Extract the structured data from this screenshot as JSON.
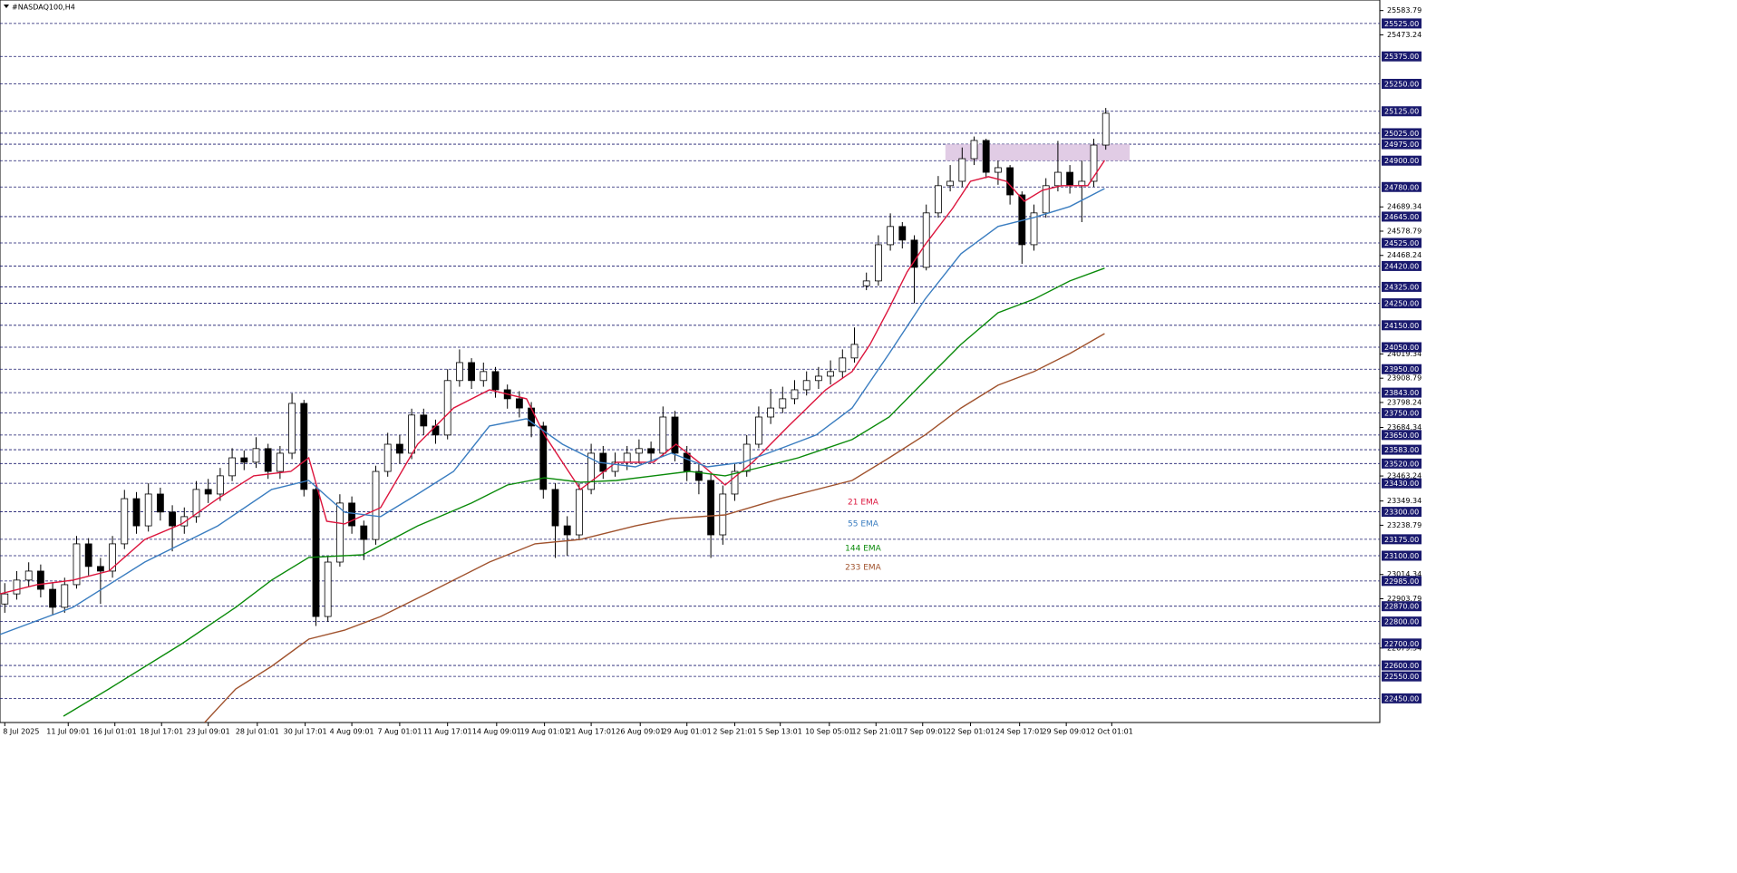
{
  "chart_data": {
    "type": "candlestick",
    "title": "#NASDAQ100,H4",
    "ylim": [
      22340,
      25632
    ],
    "xlim": [
      -0.4,
      114.9
    ],
    "yticks": [
      25583.79,
      25473.24,
      24689.34,
      24578.79,
      24468.24,
      24019.34,
      23908.79,
      23798.24,
      23684.34,
      23463.24,
      23349.34,
      23238.79,
      23014.34,
      22903.79,
      22679.34
    ],
    "levels": [
      {
        "value": 25525,
        "label": "25525.00"
      },
      {
        "value": 25375,
        "label": "25375.00"
      },
      {
        "value": 25250,
        "label": "25250.00"
      },
      {
        "value": 25125,
        "label": "25125.00"
      },
      {
        "value": 25025,
        "label": "25025.00"
      },
      {
        "value": 24975,
        "label": "24975.00"
      },
      {
        "value": 24900,
        "label": "24900.00"
      },
      {
        "value": 24780,
        "label": "24780.00"
      },
      {
        "value": 24645,
        "label": "24645.00"
      },
      {
        "value": 24525,
        "label": "24525.00"
      },
      {
        "value": 24420,
        "label": "24420.00"
      },
      {
        "value": 24325,
        "label": "24325.00"
      },
      {
        "value": 24250,
        "label": "24250.00"
      },
      {
        "value": 24150,
        "label": "24150.00"
      },
      {
        "value": 24050,
        "label": "24050.00"
      },
      {
        "value": 23950,
        "label": "23950.00"
      },
      {
        "value": 23843,
        "label": "23843.00"
      },
      {
        "value": 23750,
        "label": "23750.00"
      },
      {
        "value": 23650,
        "label": "23650.00"
      },
      {
        "value": 23583,
        "label": "23583.00"
      },
      {
        "value": 23520,
        "label": "23520.00"
      },
      {
        "value": 23430,
        "label": "23430.00"
      },
      {
        "value": 23300,
        "label": "23300.00"
      },
      {
        "value": 23175,
        "label": "23175.00"
      },
      {
        "value": 23100,
        "label": "23100.00"
      },
      {
        "value": 22985,
        "label": "22985.00"
      },
      {
        "value": 22870,
        "label": "22870.00"
      },
      {
        "value": 22800,
        "label": "22800.00"
      },
      {
        "value": 22700,
        "label": "22700.00"
      },
      {
        "value": 22600,
        "label": "22600.00"
      },
      {
        "value": 22550,
        "label": "22550.00"
      },
      {
        "value": 22450,
        "label": "22450.00"
      }
    ],
    "level_color": "#1a1a6e",
    "xticks": [
      {
        "value": 0,
        "label": "8 Jul 2025"
      },
      {
        "value": 5.3,
        "label": "11 Jul 09:01"
      },
      {
        "value": 9.2,
        "label": "16 Jul 01:01"
      },
      {
        "value": 13.1,
        "label": "18 Jul 17:01"
      },
      {
        "value": 17,
        "label": "23 Jul 09:01"
      },
      {
        "value": 21.1,
        "label": "28 Jul 01:01"
      },
      {
        "value": 25.1,
        "label": "30 Jul 17:01"
      },
      {
        "value": 29,
        "label": "4 Aug 09:01"
      },
      {
        "value": 33,
        "label": "7 Aug 01:01"
      },
      {
        "value": 37,
        "label": "11 Aug 17:01"
      },
      {
        "value": 41.1,
        "label": "14 Aug 09:01"
      },
      {
        "value": 45.1,
        "label": "19 Aug 01:01"
      },
      {
        "value": 49,
        "label": "21 Aug 17:01"
      },
      {
        "value": 53.1,
        "label": "26 Aug 09:01"
      },
      {
        "value": 57,
        "label": "29 Aug 01:01"
      },
      {
        "value": 61,
        "label": "2 Sep 21:01"
      },
      {
        "value": 64.8,
        "label": "5 Sep 13:01"
      },
      {
        "value": 68.9,
        "label": "10 Sep 05:01"
      },
      {
        "value": 72.8,
        "label": "12 Sep 21:01"
      },
      {
        "value": 76.7,
        "label": "17 Sep 09:01"
      },
      {
        "value": 80.7,
        "label": "22 Sep 01:01"
      },
      {
        "value": 84.8,
        "label": "24 Sep 17:01"
      },
      {
        "value": 88.7,
        "label": "29 Sep 09:01"
      },
      {
        "value": 92.5,
        "label": "2 Oct 01:01"
      }
    ],
    "up_color": "#ffffff",
    "down_color": "#000000",
    "candles": {
      "open": [
        22880,
        22926,
        22989,
        23030,
        22947,
        22865,
        22968,
        23154,
        23051,
        23030,
        23154,
        23360,
        23236,
        23381,
        23299,
        23236,
        23278,
        23402,
        23381,
        23464,
        23546,
        23526,
        23588,
        23484,
        23567,
        23794,
        23402,
        22823,
        23071,
        23340,
        23236,
        23174,
        23484,
        23608,
        23567,
        23741,
        23691,
        23650,
        23898,
        23980,
        23898,
        23939,
        23856,
        23815,
        23773,
        23691,
        23402,
        23236,
        23195,
        23402,
        23567,
        23484,
        23526,
        23567,
        23588,
        23567,
        23732,
        23567,
        23484,
        23443,
        23195,
        23381,
        23484,
        23608,
        23732,
        23773,
        23815,
        23856,
        23898,
        23918,
        23939,
        24001,
        24330,
        24352,
        24517,
        24600,
        24538,
        24414,
        24662,
        24786,
        24806,
        24909,
        24992,
        24847,
        24868,
        24744,
        24517,
        24662,
        24786,
        24847,
        24786,
        24806,
        24971
      ],
      "high": [
        22975,
        23030,
        23070,
        23060,
        22980,
        23000,
        23190,
        23180,
        23090,
        23190,
        23400,
        23390,
        23430,
        23410,
        23330,
        23320,
        23440,
        23450,
        23500,
        23590,
        23580,
        23640,
        23610,
        23600,
        23840,
        23810,
        23420,
        23100,
        23380,
        23370,
        23260,
        23510,
        23660,
        23650,
        23770,
        23770,
        23720,
        23950,
        24040,
        24000,
        23980,
        23960,
        23880,
        23850,
        23800,
        23710,
        23430,
        23280,
        23430,
        23610,
        23600,
        23570,
        23600,
        23630,
        23620,
        23780,
        23760,
        23600,
        23520,
        23470,
        23420,
        23520,
        23650,
        23780,
        23860,
        23870,
        23900,
        23940,
        23960,
        23990,
        24040,
        24140,
        24390,
        24560,
        24660,
        24620,
        24560,
        24700,
        24830,
        24880,
        24960,
        25010,
        25000,
        24900,
        24880,
        24760,
        24700,
        24820,
        24990,
        24880,
        24900,
        25000,
        25140
      ],
      "low": [
        22840,
        22900,
        22960,
        22910,
        22830,
        22840,
        22950,
        23010,
        22880,
        23000,
        23130,
        23200,
        23210,
        23260,
        23120,
        23200,
        23250,
        23340,
        23350,
        23440,
        23490,
        23500,
        23450,
        23450,
        23540,
        23370,
        22780,
        22800,
        23050,
        23200,
        23080,
        23150,
        23460,
        23520,
        23540,
        23650,
        23610,
        23630,
        23870,
        23860,
        23870,
        23820,
        23770,
        23730,
        23640,
        23360,
        23090,
        23100,
        23170,
        23380,
        23450,
        23460,
        23490,
        23520,
        23530,
        23550,
        23530,
        23440,
        23380,
        23090,
        23150,
        23350,
        23460,
        23590,
        23700,
        23750,
        23790,
        23830,
        23860,
        23880,
        23910,
        23980,
        24310,
        24330,
        24490,
        24500,
        24250,
        24400,
        24640,
        24760,
        24780,
        24880,
        24820,
        24790,
        24700,
        24430,
        24490,
        24640,
        24760,
        24750,
        24620,
        24780,
        24950
      ],
      "close": [
        22926,
        22989,
        23030,
        22947,
        22865,
        22968,
        23154,
        23051,
        23030,
        23154,
        23360,
        23236,
        23381,
        23299,
        23236,
        23278,
        23402,
        23381,
        23464,
        23546,
        23526,
        23588,
        23484,
        23567,
        23794,
        23402,
        22823,
        23071,
        23340,
        23236,
        23174,
        23484,
        23608,
        23567,
        23741,
        23691,
        23650,
        23898,
        23980,
        23898,
        23939,
        23856,
        23815,
        23773,
        23691,
        23402,
        23236,
        23195,
        23402,
        23567,
        23484,
        23526,
        23567,
        23588,
        23567,
        23732,
        23567,
        23484,
        23443,
        23195,
        23381,
        23484,
        23608,
        23732,
        23773,
        23815,
        23856,
        23898,
        23918,
        23939,
        24001,
        24063,
        24352,
        24517,
        24600,
        24538,
        24414,
        24662,
        24786,
        24806,
        24909,
        24992,
        24847,
        24868,
        24744,
        24517,
        24662,
        24786,
        24847,
        24786,
        24806,
        24971,
        25116
      ]
    },
    "series": [
      {
        "name": "21 EMA",
        "color": "#dc143c",
        "x": [
          -0.4,
          2.7,
          5.7,
          8.7,
          11.7,
          14.8,
          17.8,
          20.8,
          23.9,
          25.4,
          26.9,
          28.4,
          31.4,
          34.5,
          37.5,
          40.5,
          43.6,
          45.1,
          48.1,
          51.1,
          54.2,
          56.1,
          58,
          60.2,
          62.5,
          65.5,
          68.6,
          70.8,
          72.3,
          73.9,
          75.4,
          76.9,
          79.2,
          80.7,
          82.2,
          83.7,
          85.2,
          86.7,
          88.3,
          90.5,
          91.9
        ],
        "values": [
          22926,
          22968,
          22989,
          23030,
          23174,
          23245,
          23360,
          23464,
          23484,
          23546,
          23257,
          23245,
          23319,
          23608,
          23773,
          23856,
          23815,
          23650,
          23402,
          23526,
          23526,
          23608,
          23526,
          23422,
          23526,
          23691,
          23856,
          23939,
          24063,
          24228,
          24393,
          24517,
          24682,
          24806,
          24827,
          24806,
          24715,
          24765,
          24786,
          24786,
          24901
        ]
      },
      {
        "name": "55 EMA",
        "color": "#3a7dc0",
        "x": [
          -0.4,
          5.7,
          11.7,
          17.8,
          22.3,
          25.4,
          28.4,
          31.4,
          34.5,
          37.5,
          40.5,
          43.6,
          46.6,
          49.6,
          52.7,
          55.7,
          58.7,
          61.7,
          64.8,
          67.8,
          70.8,
          73.9,
          76.9,
          79.9,
          83,
          86,
          89,
          91.9
        ],
        "values": [
          22741,
          22865,
          23071,
          23236,
          23402,
          23443,
          23298,
          23278,
          23381,
          23484,
          23691,
          23724,
          23608,
          23526,
          23505,
          23567,
          23505,
          23526,
          23588,
          23650,
          23773,
          24021,
          24269,
          24476,
          24600,
          24641,
          24691,
          24773
        ]
      },
      {
        "name": "144 EMA",
        "color": "#0a8a0a",
        "x": [
          4.9,
          8.7,
          14.8,
          19.3,
          22.3,
          25.4,
          29.9,
          34.5,
          39,
          42,
          45.1,
          48.1,
          51.1,
          54.2,
          57.2,
          60.2,
          63.3,
          66.3,
          70.8,
          73.9,
          76.9,
          79.9,
          83,
          86,
          89,
          91.9
        ],
        "values": [
          22369,
          22493,
          22699,
          22865,
          22989,
          23092,
          23104,
          23236,
          23340,
          23422,
          23455,
          23435,
          23443,
          23464,
          23484,
          23464,
          23505,
          23546,
          23629,
          23732,
          23898,
          24063,
          24207,
          24269,
          24352,
          24410
        ]
      },
      {
        "name": "233 EMA",
        "color": "#a0522d",
        "x": [
          16.7,
          19.3,
          22.3,
          25.4,
          28.4,
          31.4,
          36,
          40.5,
          44.3,
          48.1,
          52.7,
          55.7,
          60.2,
          64.8,
          70.8,
          73.9,
          76.9,
          79.9,
          83,
          86,
          89,
          91.9
        ],
        "values": [
          22340,
          22493,
          22596,
          22720,
          22761,
          22823,
          22947,
          23071,
          23154,
          23174,
          23236,
          23269,
          23286,
          23360,
          23443,
          23546,
          23650,
          23773,
          23877,
          23939,
          24021,
          24112
        ]
      }
    ],
    "zone": {
      "x": [
        78.6,
        94
      ],
      "y": [
        24900,
        24975
      ],
      "color": "#dcc3e0"
    }
  }
}
